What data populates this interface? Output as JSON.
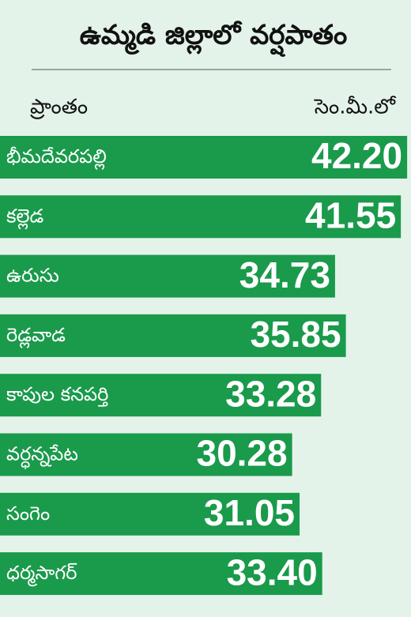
{
  "chart_data": {
    "type": "bar",
    "orientation": "horizontal",
    "title": "ఉమ్మడి జిల్లాలో వర్షపాతం",
    "category_header": "ప్రాంతం",
    "value_header": "సెం.మీ.లో",
    "categories": [
      "భీమదేవరపల్లి",
      "కల్లెడ",
      "ఉరుసు",
      "రెడ్లవాడ",
      "కాపుల కనపర్తి",
      "వర్ధన్నపేట",
      "సంగెం",
      "ధర్మసాగర్"
    ],
    "values": [
      42.2,
      41.55,
      34.73,
      35.85,
      33.28,
      30.28,
      31.05,
      33.4
    ],
    "value_labels": [
      "42.20",
      "41.55",
      "34.73",
      "35.85",
      "33.28",
      "30.28",
      "31.05",
      "33.40"
    ],
    "color": "#1a9a4b",
    "xlim": [
      0,
      42.6
    ]
  }
}
